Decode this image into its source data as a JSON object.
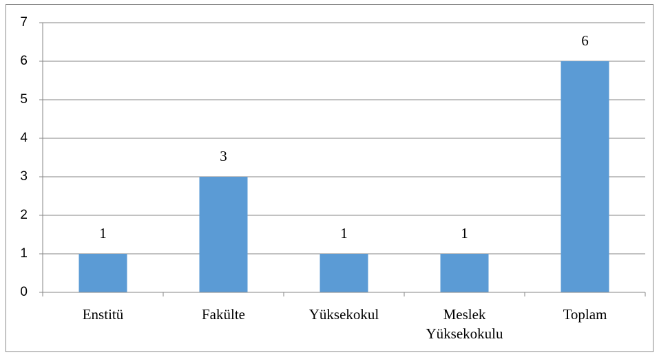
{
  "chart_data": {
    "type": "bar",
    "categories": [
      "Enstitü",
      "Fakülte",
      "Yüksekokul",
      "Meslek Yüksekokulu",
      "Toplam"
    ],
    "values": [
      1,
      3,
      1,
      1,
      6
    ],
    "color": "#5b9bd5",
    "ylim": [
      0,
      7
    ],
    "yticks": [
      0,
      1,
      2,
      3,
      4,
      5,
      6,
      7
    ],
    "grid": true,
    "data_labels": true
  }
}
